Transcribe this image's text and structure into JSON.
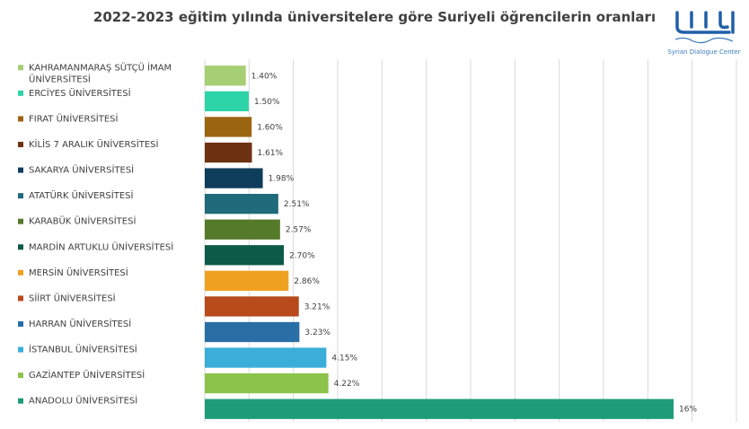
{
  "title": "2022-2023 eğitim yılında üniversitelere göre Suriyeli öğrencilerin oranları",
  "logo": {
    "name": "syrian-dialogue-center-logo",
    "text": "Syrian Dialogue Center"
  },
  "chart_data": {
    "type": "bar",
    "orientation": "horizontal",
    "title": "2022-2023 eğitim yılında üniversitelere göre Suriyeli öğrencilerin oranları",
    "legend": "left",
    "grid": true,
    "xlim": [
      0,
      16
    ],
    "categories": [
      "KAHRAMANMARAŞ SÜTÇÜ İMAM ÜNİVERSİTESİ",
      "ERCİYES ÜNİVERSİTESİ",
      "FIRAT ÜNİVERSİTESİ",
      "KİLİS 7 ARALIK ÜNİVERSİTESİ",
      "SAKARYA ÜNİVERSİTESİ",
      "ATATÜRK ÜNİVERSİTESİ",
      "KARABÜK ÜNİVERSİTESİ",
      "MARDİN ARTUKLU ÜNİVERSİTESİ",
      "MERSİN ÜNİVERSİTESİ",
      "SİİRT ÜNİVERSİTESİ",
      "HARRAN ÜNİVERSİTESİ",
      "İSTANBUL ÜNİVERSİTESİ",
      "GAZİANTEP ÜNİVERSİTESİ",
      "ANADOLU ÜNİVERSİTESİ"
    ],
    "values": [
      1.4,
      1.5,
      1.6,
      1.61,
      1.98,
      2.51,
      2.57,
      2.7,
      2.86,
      3.21,
      3.23,
      4.15,
      4.22,
      16
    ],
    "value_labels": [
      "1.40%",
      "1.50%",
      "1.60%",
      "1.61%",
      "1.98%",
      "2.51%",
      "2.57%",
      "2.70%",
      "2.86%",
      "3.21%",
      "3.23%",
      "4.15%",
      "4.22%",
      "16%"
    ],
    "colors": [
      "#a6cf73",
      "#2dd4a7",
      "#9c6512",
      "#6e3212",
      "#0f3d5c",
      "#1f6b7c",
      "#557a29",
      "#0e5a48",
      "#f0a020",
      "#b84a1c",
      "#2a6ea6",
      "#3aaed8",
      "#8cc34a",
      "#1e9c7a"
    ]
  }
}
